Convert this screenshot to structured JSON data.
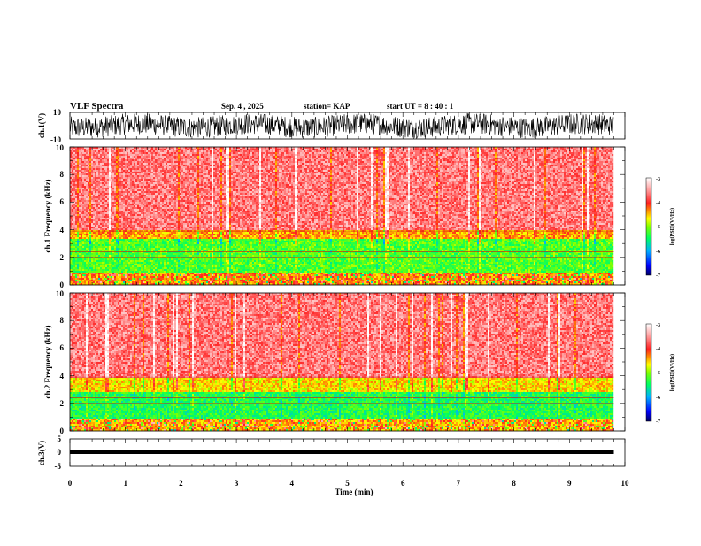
{
  "header": {
    "title": "VLF Spectra",
    "date": "Sep. 4 , 2025",
    "station": "station= KAP",
    "start_time": "start UT = 8 : 40 : 1"
  },
  "chart_data": [
    {
      "type": "line",
      "name": "ch1-waveform",
      "ylabel": "ch.1(V)",
      "ylim": [
        -10,
        10
      ],
      "y_tick_labels": [
        "10",
        "-10"
      ],
      "xlim": [
        0,
        10
      ],
      "note": "broadband noisy waveform, amplitude roughly +/-8 V"
    },
    {
      "type": "heatmap",
      "name": "ch1-spectrogram",
      "ylabel": "ch.1 Frequency (kHz)",
      "ylim": [
        0,
        10
      ],
      "y_tick_labels": [
        "0",
        "2",
        "4",
        "6",
        "8",
        "10"
      ],
      "xlim": [
        0,
        10
      ],
      "data_end_min": 9.8,
      "bands": [
        {
          "from_khz": 0.0,
          "to_khz": 0.9,
          "level": -4.3
        },
        {
          "from_khz": 0.9,
          "to_khz": 3.3,
          "level": -5.2
        },
        {
          "from_khz": 3.3,
          "to_khz": 4.0,
          "level": -4.4
        },
        {
          "from_khz": 4.0,
          "to_khz": 10.0,
          "level": -3.6
        }
      ],
      "colorbar": {
        "label": "log(PSD)(V²/Hz)",
        "range": [
          -7,
          -3
        ],
        "tick_labels": [
          "-3",
          "-4",
          "-5",
          "-6",
          "-7"
        ]
      }
    },
    {
      "type": "heatmap",
      "name": "ch2-spectrogram",
      "ylabel": "ch.2 Frequency (kHz)",
      "ylim": [
        0,
        10
      ],
      "y_tick_labels": [
        "0",
        "2",
        "4",
        "6",
        "8",
        "10"
      ],
      "xlim": [
        0,
        10
      ],
      "data_end_min": 9.8,
      "bands": [
        {
          "from_khz": 0.0,
          "to_khz": 0.9,
          "level": -4.4
        },
        {
          "from_khz": 0.9,
          "to_khz": 2.8,
          "level": -5.4
        },
        {
          "from_khz": 2.8,
          "to_khz": 3.8,
          "level": -4.6
        },
        {
          "from_khz": 3.8,
          "to_khz": 10.0,
          "level": -3.6
        }
      ],
      "colorbar": {
        "label": "log(PSD)(V²/Hz)",
        "range": [
          -7,
          -3
        ],
        "tick_labels": [
          "-3",
          "-4",
          "-5",
          "-6",
          "-7"
        ]
      }
    },
    {
      "type": "line",
      "name": "ch3-waveform",
      "ylabel": "ch.3(V)",
      "ylim": [
        -5,
        5
      ],
      "y_tick_labels": [
        "5",
        "0",
        "-5"
      ],
      "xlim": [
        0,
        10
      ],
      "note": "nearly constant thick trace near -0.5 V"
    }
  ],
  "x_axis": {
    "label": "Time (min)",
    "range": [
      0,
      10
    ],
    "tick_labels": [
      "0",
      "1",
      "2",
      "3",
      "4",
      "5",
      "6",
      "7",
      "8",
      "9",
      "10"
    ]
  },
  "colors": {
    "stops": [
      "#000080",
      "#0000ff",
      "#00a0ff",
      "#00e0c0",
      "#00ff00",
      "#c8ff00",
      "#ffff00",
      "#ffb000",
      "#ff2020",
      "#ffffff"
    ]
  }
}
